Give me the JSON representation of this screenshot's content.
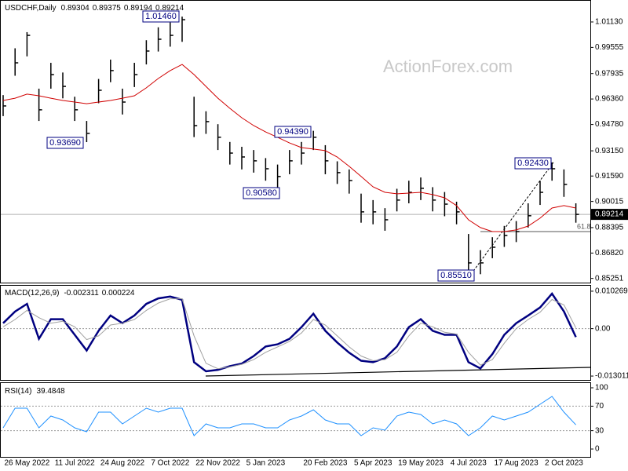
{
  "chart_data": [
    {
      "type": "ohlc",
      "title": "USDCHF,Daily",
      "header_values": [
        0.89304,
        0.89375,
        0.89194,
        0.89214
      ],
      "watermark": "ActionForex.com",
      "color": "#000000",
      "ylim": [
        0.8499,
        1.0249
      ],
      "yticks": [
        {
          "value": 1.0113,
          "label": "1.01130"
        },
        {
          "value": 0.99555,
          "label": "0.99555"
        },
        {
          "value": 0.97935,
          "label": "0.97935"
        },
        {
          "value": 0.9636,
          "label": "0.96360"
        },
        {
          "value": 0.9478,
          "label": "0.94780"
        },
        {
          "value": 0.9315,
          "label": "0.93150"
        },
        {
          "value": 0.9159,
          "label": "0.91590"
        },
        {
          "value": 0.90015,
          "label": "0.90015"
        },
        {
          "value": 0.88395,
          "label": "0.88395"
        },
        {
          "value": 0.8682,
          "label": "0.86820"
        },
        {
          "value": 0.85251,
          "label": "0.85251"
        }
      ],
      "high": [
        0.966,
        0.995,
        1.005,
        0.97,
        0.986,
        0.98,
        0.965,
        0.95,
        0.976,
        0.988,
        0.97,
        0.986,
        1.0,
        1.008,
        1.011,
        1.0146,
        0.965,
        0.956,
        0.948,
        0.937,
        0.934,
        0.932,
        0.927,
        0.923,
        0.932,
        0.937,
        0.9439,
        0.935,
        0.925,
        0.92,
        0.905,
        0.901,
        0.896,
        0.908,
        0.913,
        0.915,
        0.909,
        0.906,
        0.9,
        0.88,
        0.87,
        0.878,
        0.885,
        0.888,
        0.899,
        0.913,
        0.9243,
        0.92,
        0.899
      ],
      "low": [
        0.953,
        0.978,
        0.99,
        0.95,
        0.97,
        0.964,
        0.95,
        0.9369,
        0.961,
        0.974,
        0.954,
        0.971,
        0.985,
        0.993,
        0.996,
        0.999,
        0.94,
        0.942,
        0.932,
        0.923,
        0.92,
        0.918,
        0.913,
        0.9058,
        0.917,
        0.923,
        0.932,
        0.917,
        0.911,
        0.905,
        0.887,
        0.886,
        0.882,
        0.894,
        0.899,
        0.901,
        0.894,
        0.891,
        0.886,
        0.856,
        0.8551,
        0.865,
        0.872,
        0.875,
        0.884,
        0.898,
        0.913,
        0.903,
        0.887
      ],
      "close": [
        0.9593,
        0.986,
        1.003,
        0.9569,
        0.9787,
        0.9714,
        0.9569,
        0.9423,
        0.969,
        0.9812,
        0.9617,
        0.9787,
        0.9933,
        1.0006,
        1.003,
        1.0127,
        0.9471,
        0.9496,
        0.9399,
        0.9301,
        0.9277,
        0.9253,
        0.9204,
        0.9156,
        0.9253,
        0.9301,
        0.9399,
        0.9253,
        0.918,
        0.9131,
        0.8937,
        0.8937,
        0.8888,
        0.901,
        0.9058,
        0.9083,
        0.901,
        0.8985,
        0.8937,
        0.8621,
        0.8621,
        0.8718,
        0.8791,
        0.8815,
        0.8913,
        0.9058,
        0.9204,
        0.9107,
        0.89214
      ],
      "ma": {
        "color": "#d00000",
        "values": [
          0.9627,
          0.9641,
          0.9666,
          0.9656,
          0.9641,
          0.9627,
          0.9617,
          0.9607,
          0.9617,
          0.9627,
          0.9641,
          0.9656,
          0.9705,
          0.9763,
          0.9812,
          0.985,
          0.9787,
          0.9714,
          0.9641,
          0.9578,
          0.952,
          0.9471,
          0.9432,
          0.9399,
          0.9364,
          0.9335,
          0.9326,
          0.9316,
          0.9277,
          0.9219,
          0.9156,
          0.9092,
          0.9058,
          0.9049,
          0.9053,
          0.9058,
          0.9044,
          0.9024,
          0.8976,
          0.8888,
          0.884,
          0.8815,
          0.8815,
          0.8825,
          0.8849,
          0.8898,
          0.8961,
          0.8976,
          0.8961
        ]
      },
      "annotations": [
        {
          "value": 1.0146,
          "label": "1.01460"
        },
        {
          "value": 0.9369,
          "label": "0.93690"
        },
        {
          "value": 0.9058,
          "label": "0.90580"
        },
        {
          "value": 0.9439,
          "label": "0.94390"
        },
        {
          "value": 0.9243,
          "label": "0.92430"
        },
        {
          "value": 0.8551,
          "label": "0.85510"
        }
      ],
      "fib": {
        "value": 0.8815,
        "label": "61.8"
      }
    },
    {
      "type": "line",
      "title": "MACD(12,26,9)",
      "header_values": [
        -0.002311,
        0.000224
      ],
      "ylim": [
        -0.01429,
        0.01198
      ],
      "yticks": [
        {
          "value": 0.010269,
          "label": "0.010269"
        },
        {
          "value": 0,
          "label": "0.00"
        },
        {
          "value": -0.013011,
          "label": "-0.013011"
        }
      ],
      "series": [
        {
          "color": "#000080",
          "width": 2.5,
          "values": [
            0.0015,
            0.0047,
            0.0068,
            -0.0028,
            0.0026,
            0.0026,
            -0.0017,
            -0.006,
            -0.0006,
            0.0036,
            0.0015,
            0.0036,
            0.0068,
            0.0083,
            0.0088,
            0.0079,
            -0.0092,
            -0.0117,
            -0.0113,
            -0.0103,
            -0.0096,
            -0.0075,
            -0.0049,
            -0.0043,
            -0.0028,
            0.0004,
            0.0041,
            -0.0006,
            -0.0038,
            -0.0066,
            -0.0088,
            -0.0092,
            -0.0081,
            -0.0049,
            0.0004,
            0.0026,
            -0.0006,
            -0.0017,
            -0.0017,
            -0.0092,
            -0.0109,
            -0.007,
            -0.0017,
            0.0015,
            0.0036,
            0.0058,
            0.0096,
            0.0047,
            -0.002311
          ]
        },
        {
          "color": "#a0a0a0",
          "width": 1,
          "values": [
            0.0005,
            0.0025,
            0.005,
            0.003,
            0.0015,
            0.002,
            0.0005,
            -0.003,
            -0.002,
            0.001,
            0.0015,
            0.0025,
            0.005,
            0.007,
            0.0082,
            0.0082,
            -0.002,
            -0.0095,
            -0.011,
            -0.0105,
            -0.0098,
            -0.0085,
            -0.0065,
            -0.005,
            -0.0035,
            -0.0012,
            0.0025,
            0.001,
            -0.002,
            -0.005,
            -0.0075,
            -0.0088,
            -0.0085,
            -0.0065,
            -0.002,
            0.0015,
            0.0005,
            -0.001,
            -0.0015,
            -0.0065,
            -0.01,
            -0.0085,
            -0.004,
            0.0,
            0.0025,
            0.0045,
            0.008,
            0.0065,
            0.000224
          ]
        }
      ]
    },
    {
      "type": "line",
      "title": "RSI(14)",
      "header_values": [
        39.4848
      ],
      "ylim": [
        -12.8,
        107.7
      ],
      "yticks": [
        0,
        30,
        70,
        100
      ],
      "levels": [
        70,
        30
      ],
      "categories": [
        null,
        null,
        "26 May 2022",
        null,
        null,
        null,
        "11 Jul 2022",
        null,
        null,
        null,
        "24 Aug 2022",
        null,
        null,
        null,
        "7 Oct 2022",
        null,
        null,
        null,
        "22 Nov 2022",
        null,
        null,
        null,
        "5 Jan 2023",
        null,
        null,
        null,
        null,
        "20 Feb 2023",
        null,
        null,
        null,
        "5 Apr 2023",
        null,
        null,
        null,
        "19 May 2023",
        null,
        null,
        null,
        "4 Jul 2023",
        null,
        null,
        null,
        "17 Aug 2023",
        null,
        null,
        null,
        "2 Oct 2023",
        null
      ],
      "series": [
        {
          "color": "#1e90ff",
          "width": 1,
          "values": [
            34.6,
            66.7,
            66.7,
            34.6,
            53.8,
            47.4,
            34.6,
            28.2,
            60.3,
            60.3,
            41.0,
            53.8,
            66.7,
            60.3,
            66.7,
            66.7,
            21.8,
            41.0,
            34.6,
            34.6,
            41.0,
            41.0,
            34.6,
            34.6,
            47.4,
            53.8,
            64.1,
            47.4,
            41.0,
            41.0,
            21.8,
            34.6,
            30.8,
            53.8,
            60.3,
            56.4,
            41.0,
            47.4,
            41.0,
            21.8,
            34.6,
            53.8,
            47.4,
            53.8,
            60.3,
            73.1,
            85.9,
            60.3,
            39.4848
          ]
        }
      ]
    }
  ]
}
